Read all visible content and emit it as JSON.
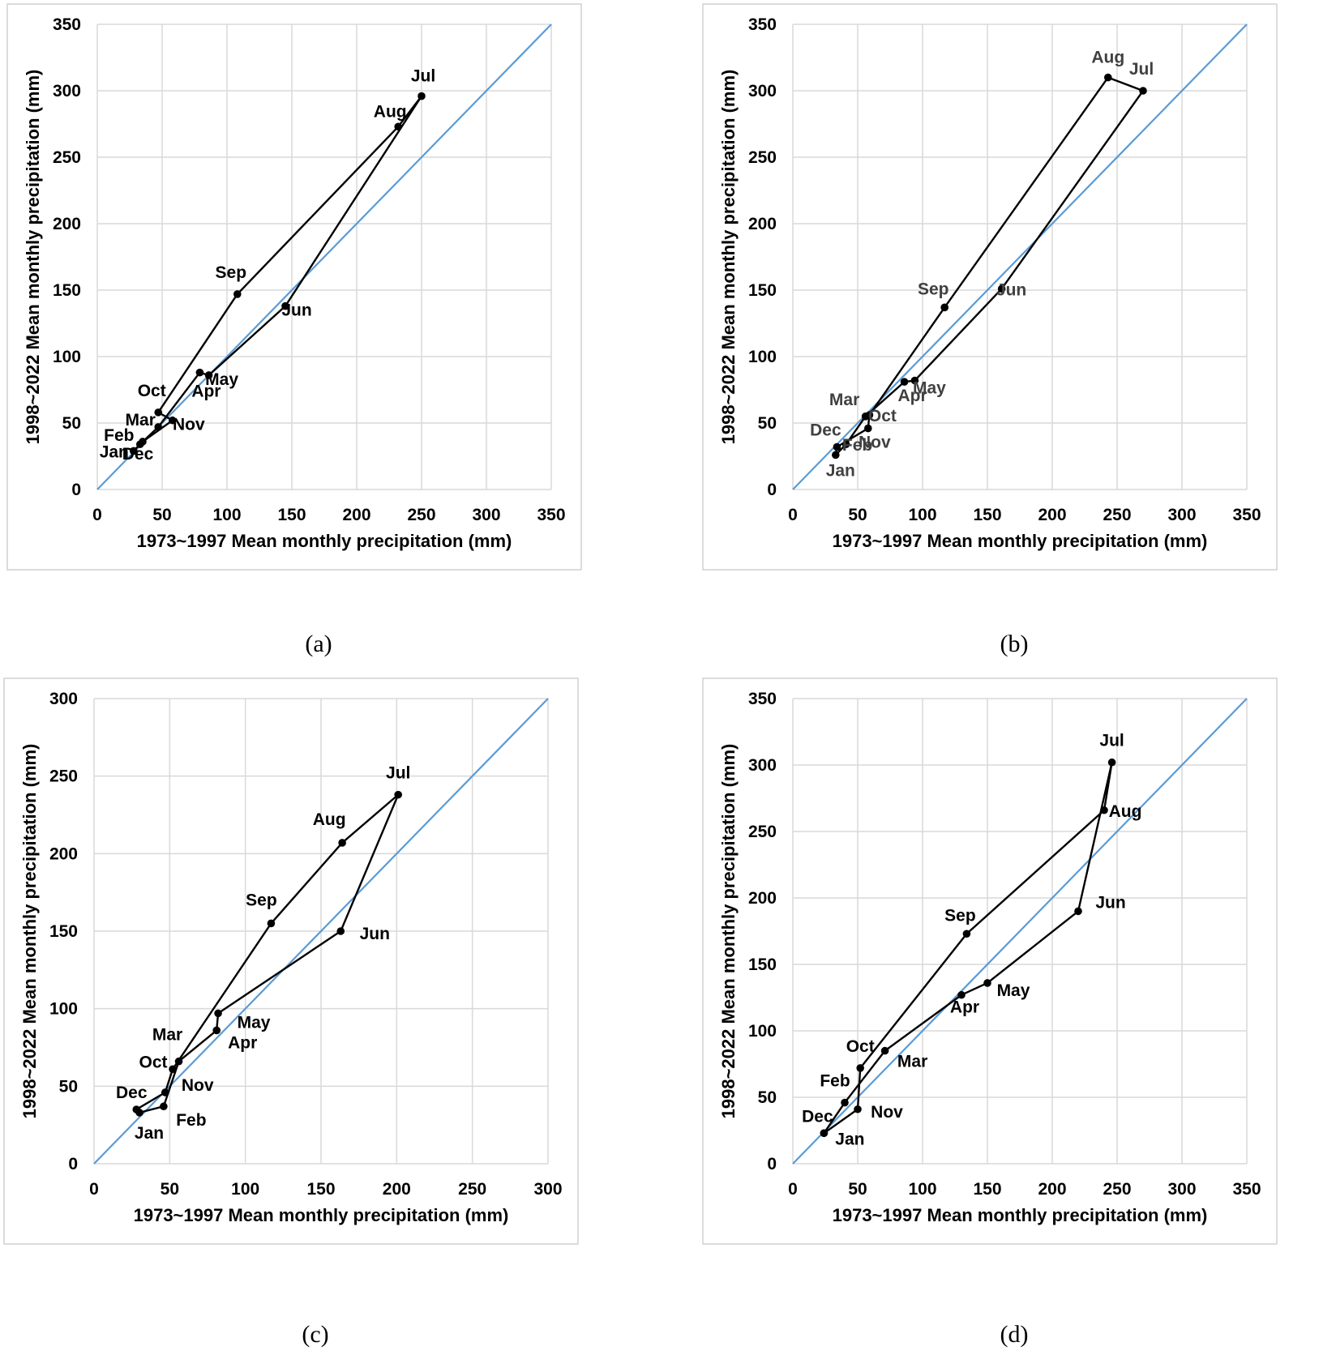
{
  "chart_data": [
    {
      "type": "line",
      "caption": "(a)",
      "xlabel": "1973~1997 Mean monthly precipitation (mm)",
      "ylabel": "1998~2022 Mean monthly precipitation (mm)",
      "xlim": [
        0,
        350
      ],
      "ylim": [
        0,
        350
      ],
      "xticks": [
        0,
        50,
        100,
        150,
        200,
        250,
        300,
        350
      ],
      "yticks": [
        0,
        50,
        100,
        150,
        200,
        250,
        300,
        350
      ],
      "grid": true,
      "label_color": "#000000",
      "line_color": "#000000",
      "reference_line_color": "#5b9bd5",
      "months": [
        "Jan",
        "Feb",
        "Mar",
        "Apr",
        "May",
        "Jun",
        "Jul",
        "Aug",
        "Sep",
        "Oct",
        "Nov",
        "Dec"
      ],
      "x": [
        28,
        33,
        47,
        79,
        86,
        145,
        250,
        232,
        108,
        47,
        58,
        35
      ],
      "y": [
        29,
        34,
        47,
        88,
        86,
        138,
        296,
        273,
        147,
        58,
        52,
        36
      ]
    },
    {
      "type": "line",
      "caption": "(b)",
      "xlabel": "1973~1997 Mean monthly precipitation (mm)",
      "ylabel": "1998~2022 Mean monthly precipitation (mm)",
      "xlim": [
        0,
        350
      ],
      "ylim": [
        0,
        350
      ],
      "xticks": [
        0,
        50,
        100,
        150,
        200,
        250,
        300,
        350
      ],
      "yticks": [
        0,
        50,
        100,
        150,
        200,
        250,
        300,
        350
      ],
      "grid": true,
      "label_color": "#404040",
      "line_color": "#000000",
      "reference_line_color": "#5b9bd5",
      "months": [
        "Jan",
        "Feb",
        "Mar",
        "Apr",
        "May",
        "Jun",
        "Jul",
        "Aug",
        "Sep",
        "Oct",
        "Nov",
        "Dec"
      ],
      "x": [
        33,
        41,
        56,
        86,
        94,
        161,
        270,
        243,
        117,
        59,
        58,
        34
      ],
      "y": [
        26,
        34,
        55,
        81,
        82,
        151,
        300,
        310,
        137,
        56,
        46,
        32
      ]
    },
    {
      "type": "line",
      "caption": "(c)",
      "xlabel": "1973~1997 Mean monthly precipitation (mm)",
      "ylabel": "1998~2022 Mean monthly precipitation (mm)",
      "xlim": [
        0,
        300
      ],
      "ylim": [
        0,
        300
      ],
      "xticks": [
        0,
        50,
        100,
        150,
        200,
        250,
        300
      ],
      "yticks": [
        0,
        50,
        100,
        150,
        200,
        250,
        300
      ],
      "grid": true,
      "label_color": "#000000",
      "line_color": "#000000",
      "reference_line_color": "#5b9bd5",
      "months": [
        "Jan",
        "Feb",
        "Mar",
        "Apr",
        "May",
        "Jun",
        "Jul",
        "Aug",
        "Sep",
        "Oct",
        "Nov",
        "Dec"
      ],
      "x": [
        30,
        46,
        56,
        81,
        82,
        163,
        201,
        164,
        117,
        52,
        47,
        28
      ],
      "y": [
        33,
        37,
        66,
        86,
        97,
        150,
        238,
        207,
        155,
        61,
        46,
        35
      ]
    },
    {
      "type": "line",
      "caption": "(d)",
      "xlabel": "1973~1997 Mean monthly precipitation (mm)",
      "ylabel": "1998~2022 Mean monthly precipitation (mm)",
      "xlim": [
        0,
        350
      ],
      "ylim": [
        0,
        350
      ],
      "xticks": [
        0,
        50,
        100,
        150,
        200,
        250,
        300,
        350
      ],
      "yticks": [
        0,
        50,
        100,
        150,
        200,
        250,
        300,
        350
      ],
      "grid": true,
      "label_color": "#000000",
      "line_color": "#000000",
      "reference_line_color": "#5b9bd5",
      "months": [
        "Jan",
        "Feb",
        "Mar",
        "Apr",
        "May",
        "Jun",
        "Jul",
        "Aug",
        "Sep",
        "Oct",
        "Nov",
        "Dec"
      ],
      "x": [
        24,
        40,
        71,
        130,
        150,
        220,
        246,
        240,
        134,
        52,
        50,
        24
      ],
      "y": [
        23,
        46,
        85,
        127,
        136,
        190,
        302,
        266,
        173,
        72,
        41,
        23
      ]
    }
  ]
}
